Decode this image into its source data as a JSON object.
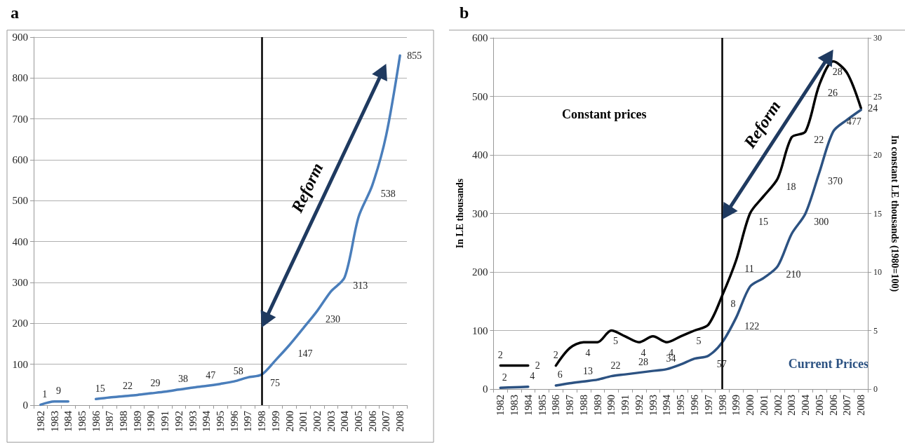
{
  "chart_data": [
    {
      "type": "line",
      "title": "a",
      "categories": [
        "1982",
        "1983",
        "1984",
        "1985",
        "1986",
        "1987",
        "1988",
        "1989",
        "1990",
        "1991",
        "1992",
        "1993",
        "1994",
        "1995",
        "1996",
        "1997",
        "1998",
        "1999",
        "2000",
        "2001",
        "2002",
        "2003",
        "2004",
        "2005",
        "2006",
        "2007",
        "2008"
      ],
      "series": [
        {
          "color": "#4a7ebb",
          "values": [
            1,
            9,
            9,
            null,
            15,
            19,
            22,
            25,
            29,
            33,
            38,
            43,
            47,
            52,
            58,
            68,
            75,
            110,
            147,
            188,
            230,
            278,
            313,
            460,
            538,
            660,
            855
          ],
          "value_labels": [
            "1",
            "9",
            null,
            null,
            "15",
            null,
            "22",
            null,
            "29",
            null,
            "38",
            null,
            "47",
            null,
            "58",
            null,
            "75",
            null,
            "147",
            null,
            "230",
            null,
            "313",
            null,
            "538",
            null,
            "855"
          ]
        }
      ],
      "ylim": [
        0,
        900
      ],
      "yticks": [
        0,
        100,
        200,
        300,
        400,
        500,
        600,
        700,
        800,
        900
      ],
      "grid": "y",
      "marker": "none",
      "line_style": "solid",
      "ref_lines": [
        {
          "axis": "x",
          "value": "1998",
          "color": "#000000"
        }
      ],
      "annotations": [
        "Reform"
      ]
    },
    {
      "type": "line",
      "title": "b",
      "ylabel": "In LE thousands",
      "y2label": "In constant LE thousands (1980=100)",
      "categories": [
        "1982",
        "1983",
        "1984",
        "1985",
        "1986",
        "1987",
        "1988",
        "1989",
        "1990",
        "1991",
        "1992",
        "1993",
        "1994",
        "1995",
        "1996",
        "1997",
        "1998",
        "1999",
        "2000",
        "2001",
        "2002",
        "2003",
        "2004",
        "2005",
        "2006",
        "2007",
        "2008"
      ],
      "series": [
        {
          "name": "Constant prices",
          "color": "#000000",
          "axis": "y2",
          "values": [
            2,
            2,
            2,
            null,
            2,
            3.5,
            4,
            4,
            5,
            4.5,
            4,
            4.5,
            4,
            4.5,
            5,
            5.5,
            8,
            11,
            15,
            16.5,
            18,
            21.5,
            22,
            26,
            28,
            27,
            24
          ],
          "value_labels": [
            "2",
            null,
            "2",
            null,
            "2",
            null,
            "4",
            null,
            "5",
            null,
            "4",
            null,
            "4",
            null,
            "5",
            null,
            "8",
            "11",
            "15",
            null,
            "18",
            null,
            "22",
            "26",
            "28",
            null,
            "24"
          ]
        },
        {
          "name": "Current Prices",
          "color": "#2c5282",
          "values": [
            2,
            3,
            4,
            null,
            6,
            10,
            13,
            16,
            22,
            25,
            28,
            31,
            34,
            42,
            52,
            57,
            80,
            122,
            175,
            190,
            210,
            265,
            300,
            370,
            440,
            460,
            477
          ],
          "value_labels": [
            "2",
            null,
            "4",
            null,
            "6",
            null,
            "13",
            null,
            "22",
            null,
            "28",
            null,
            "34",
            null,
            null,
            "57",
            null,
            "122",
            null,
            null,
            "210",
            null,
            "300",
            "370",
            null,
            null,
            "477"
          ]
        }
      ],
      "ylim": [
        0,
        600
      ],
      "yticks": [
        0,
        100,
        200,
        300,
        400,
        500,
        600
      ],
      "y2lim": [
        0,
        30
      ],
      "y2ticks": [
        0,
        5,
        10,
        15,
        20,
        25,
        30
      ],
      "grid": "y",
      "marker": "none",
      "line_style": "solid",
      "ref_lines": [
        {
          "axis": "x",
          "value": "1998",
          "color": "#000000"
        }
      ],
      "annotations": [
        "Reform"
      ]
    }
  ]
}
